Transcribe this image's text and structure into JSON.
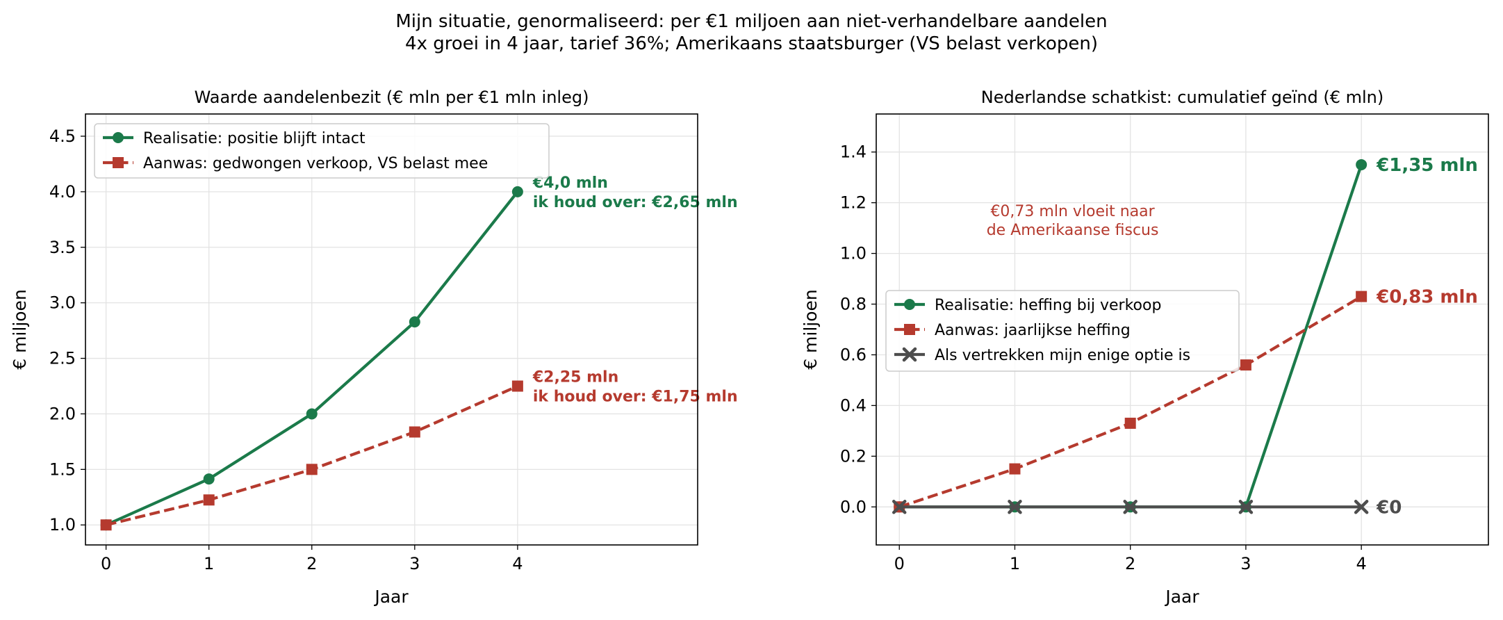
{
  "suptitle": {
    "line1": "Mijn situatie, genormaliseerd: per €1 miljoen aan niet-verhandelbare aandelen",
    "line2": "4x groei in 4 jaar, tarief 36%; Amerikaans staatsburger (VS belast verkopen)"
  },
  "chart_data": [
    {
      "type": "line",
      "title": "Waarde aandelenbezit (€ mln per €1 mln inleg)",
      "xlabel": "Jaar",
      "ylabel": "€ miljoen",
      "xlim": [
        -0.2,
        5.75
      ],
      "ylim": [
        0.82,
        4.7
      ],
      "xticks": [
        0,
        1,
        2,
        3,
        4
      ],
      "yticks": [
        1.0,
        1.5,
        2.0,
        2.5,
        3.0,
        3.5,
        4.0,
        4.5
      ],
      "ytick_labels": [
        "1.0",
        "1.5",
        "2.0",
        "2.5",
        "3.0",
        "3.5",
        "4.0",
        "4.5"
      ],
      "grid": true,
      "legend": "top-left",
      "x": [
        0,
        1,
        2,
        3,
        4
      ],
      "series": [
        {
          "name": "Realisatie: positie blijft intact",
          "values": [
            1.0,
            1.414,
            2.0,
            2.828,
            4.0
          ],
          "color": "#1b7a4a",
          "style": "solid",
          "marker": "circle"
        },
        {
          "name": "Aanwas: gedwongen verkoop, VS belast mee",
          "values": [
            1.0,
            1.225,
            1.5,
            1.837,
            2.25
          ],
          "color": "#b53a2e",
          "style": "dashed",
          "marker": "square"
        }
      ],
      "annotations": [
        {
          "lines": [
            "€4,0 mln",
            "ik houd over: €2,65 mln"
          ],
          "x": 4,
          "y": 4.0,
          "color": "#1b7a4a"
        },
        {
          "lines": [
            "€2,25 mln",
            "ik houd over: €1,75 mln"
          ],
          "x": 4,
          "y": 2.25,
          "color": "#b53a2e"
        }
      ]
    },
    {
      "type": "line",
      "title": "Nederlandse schatkist: cumulatief geïnd (€ mln)",
      "xlabel": "Jaar",
      "ylabel": "€ miljoen",
      "xlim": [
        -0.2,
        5.1
      ],
      "ylim": [
        -0.15,
        1.55
      ],
      "xticks": [
        0,
        1,
        2,
        3,
        4
      ],
      "yticks": [
        0.0,
        0.2,
        0.4,
        0.6,
        0.8,
        1.0,
        1.2,
        1.4
      ],
      "ytick_labels": [
        "0.0",
        "0.2",
        "0.4",
        "0.6",
        "0.8",
        "1.0",
        "1.2",
        "1.4"
      ],
      "grid": true,
      "legend": "center-left",
      "x": [
        0,
        1,
        2,
        3,
        4
      ],
      "series": [
        {
          "name": "Realisatie: heffing bij verkoop",
          "values": [
            0,
            0,
            0,
            0,
            1.35
          ],
          "color": "#1b7a4a",
          "style": "solid",
          "marker": "circle"
        },
        {
          "name": "Aanwas: jaarlijkse heffing",
          "values": [
            0,
            0.15,
            0.33,
            0.56,
            0.83
          ],
          "color": "#b53a2e",
          "style": "dashed",
          "marker": "square"
        },
        {
          "name": "Als vertrekken mijn enige optie is",
          "values": [
            0,
            0,
            0,
            0,
            0
          ],
          "color": "#4d4d4d",
          "style": "solid",
          "marker": "x"
        }
      ],
      "end_labels": [
        {
          "text": "€1,35 mln",
          "x": 4,
          "y": 1.35,
          "color": "#1b7a4a"
        },
        {
          "text": "€0,83 mln",
          "x": 4,
          "y": 0.83,
          "color": "#b53a2e"
        },
        {
          "text": "€0",
          "x": 4,
          "y": 0,
          "color": "#4d4d4d"
        }
      ],
      "note": {
        "lines": [
          "€0,73 mln vloeit naar",
          "de Amerikaanse fiscus"
        ],
        "x": 1.5,
        "y": 1.12,
        "color": "#b53a2e"
      }
    }
  ]
}
